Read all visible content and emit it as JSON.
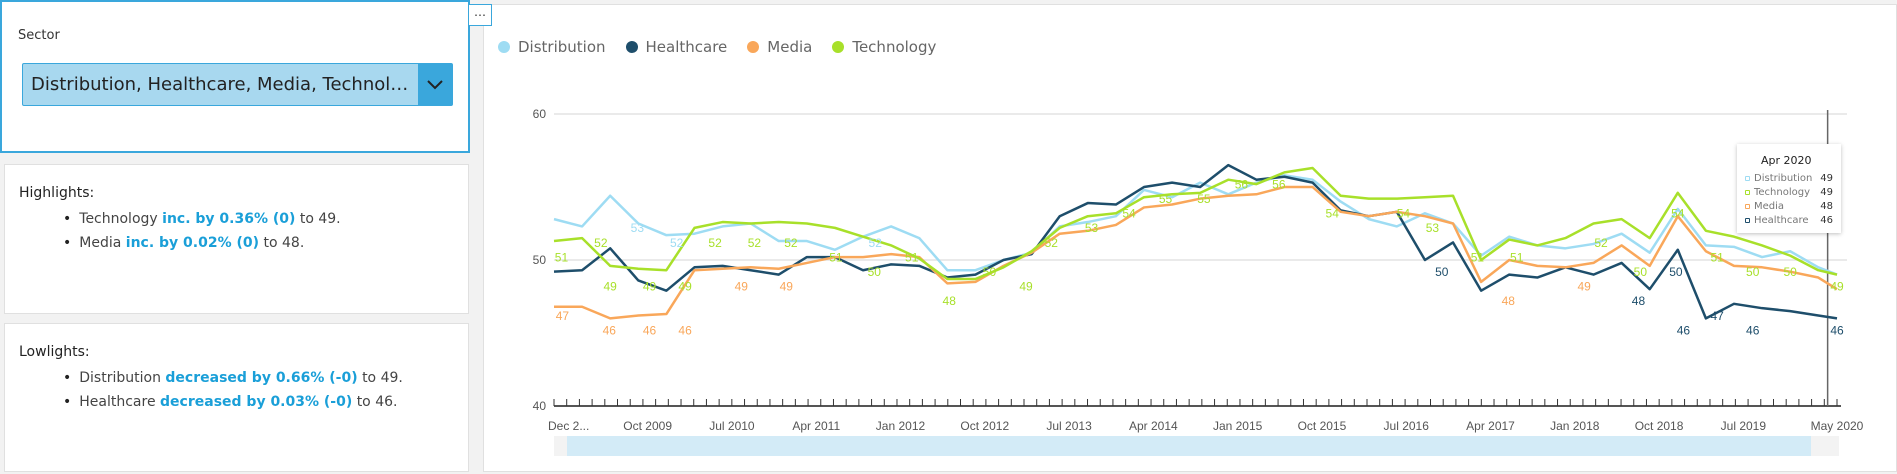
{
  "control": {
    "label": "Sector",
    "selected": "Distribution, Healthcare, Media, Technol…",
    "menu_icon": "…"
  },
  "highlights": {
    "title": "Highlights:",
    "items": [
      {
        "name": "Technology",
        "change": "inc. by 0.36% (0)",
        "tail": "to 49."
      },
      {
        "name": "Media",
        "change": "inc. by 0.02% (0)",
        "tail": "to 48."
      }
    ]
  },
  "lowlights": {
    "title": "Lowlights:",
    "items": [
      {
        "name": "Distribution",
        "change": "decreased by 0.66% (-0)",
        "tail": "to 49."
      },
      {
        "name": "Healthcare",
        "change": "decreased by 0.03% (-0)",
        "tail": "to 46."
      }
    ]
  },
  "tooltip": {
    "title": "Apr 2020",
    "rows": [
      {
        "name": "Distribution",
        "value": "49",
        "color": "#9edcf3"
      },
      {
        "name": "Technology",
        "value": "49",
        "color": "#a8e02a"
      },
      {
        "name": "Media",
        "value": "48",
        "color": "#f9a75a"
      },
      {
        "name": "Healthcare",
        "value": "46",
        "color": "#1e4e6b"
      }
    ]
  },
  "chart_data": {
    "type": "line",
    "x_unit": "months since Dec 2008",
    "x": [
      0,
      3,
      6,
      9,
      12,
      15,
      18,
      21,
      24,
      27,
      30,
      33,
      36,
      39,
      42,
      45,
      48,
      51,
      54,
      57,
      60,
      63,
      66,
      69,
      72,
      75,
      78,
      81,
      84,
      87,
      90,
      93,
      96,
      99,
      102,
      105,
      108,
      111,
      114,
      117,
      120,
      123,
      126,
      129,
      132,
      135,
      137
    ],
    "ylim": [
      40,
      60
    ],
    "yticks": [
      40,
      50,
      60
    ],
    "xticks": [
      {
        "m": 0,
        "label": "Dec 2..."
      },
      {
        "m": 10,
        "label": "Oct 2009"
      },
      {
        "m": 19,
        "label": "Jul 2010"
      },
      {
        "m": 28,
        "label": "Apr 2011"
      },
      {
        "m": 37,
        "label": "Jan 2012"
      },
      {
        "m": 46,
        "label": "Oct 2012"
      },
      {
        "m": 55,
        "label": "Jul 2013"
      },
      {
        "m": 64,
        "label": "Apr 2014"
      },
      {
        "m": 73,
        "label": "Jan 2015"
      },
      {
        "m": 82,
        "label": "Oct 2015"
      },
      {
        "m": 91,
        "label": "Jul 2016"
      },
      {
        "m": 100,
        "label": "Apr 2017"
      },
      {
        "m": 109,
        "label": "Jan 2018"
      },
      {
        "m": 118,
        "label": "Oct 2018"
      },
      {
        "m": 127,
        "label": "Jul 2019"
      },
      {
        "m": 137,
        "label": "May 2020"
      }
    ],
    "legend_position": "top-left",
    "series": [
      {
        "name": "Distribution",
        "color": "#9edcf3",
        "values": [
          52.8,
          52.3,
          54.4,
          52.5,
          51.7,
          51.8,
          52.3,
          52.5,
          51.3,
          51.3,
          50.7,
          51.6,
          52.3,
          51.5,
          49.3,
          49.3,
          50.0,
          50.5,
          52.3,
          52.6,
          53.0,
          54.8,
          54.3,
          55.3,
          54.5,
          55.3,
          55.8,
          55.5,
          54.0,
          52.8,
          52.3,
          53.2,
          52.5,
          50.3,
          51.6,
          51.0,
          50.8,
          51.1,
          51.8,
          50.5,
          53.5,
          51.0,
          50.9,
          50.2,
          50.6,
          49.5,
          49.0
        ]
      },
      {
        "name": "Healthcare",
        "color": "#1e4e6b",
        "values": [
          49.2,
          49.3,
          50.8,
          48.6,
          47.9,
          49.5,
          49.6,
          49.3,
          49.0,
          50.2,
          50.2,
          49.3,
          49.7,
          49.6,
          48.8,
          49.0,
          50.0,
          50.4,
          53.0,
          53.9,
          53.8,
          55.0,
          55.3,
          55.0,
          56.5,
          55.5,
          55.7,
          55.3,
          53.4,
          53.0,
          53.3,
          50.0,
          51.2,
          47.9,
          49.0,
          48.8,
          49.5,
          49.0,
          49.8,
          48.0,
          50.7,
          46.0,
          47.0,
          46.7,
          46.5,
          46.2,
          46.0
        ]
      },
      {
        "name": "Media",
        "color": "#f9a75a",
        "values": [
          46.8,
          46.8,
          46.0,
          46.2,
          46.3,
          49.3,
          49.4,
          49.5,
          49.4,
          49.8,
          50.2,
          50.2,
          50.4,
          50.2,
          48.4,
          48.5,
          49.6,
          50.5,
          51.8,
          52.0,
          52.4,
          53.6,
          53.8,
          54.2,
          54.4,
          54.5,
          55.0,
          55.0,
          53.3,
          53.0,
          53.3,
          53.0,
          52.5,
          48.5,
          50.0,
          49.6,
          49.5,
          49.8,
          51.0,
          49.6,
          53.0,
          50.6,
          49.6,
          49.5,
          49.2,
          48.8,
          48.0
        ]
      },
      {
        "name": "Technology",
        "color": "#a8e02a",
        "values": [
          51.3,
          51.5,
          49.6,
          49.4,
          49.3,
          52.2,
          52.6,
          52.5,
          52.6,
          52.5,
          52.2,
          51.6,
          51.0,
          50.1,
          48.7,
          48.7,
          49.5,
          50.6,
          52.2,
          53.0,
          53.2,
          54.3,
          54.5,
          54.6,
          55.5,
          55.2,
          56.0,
          56.3,
          54.4,
          54.2,
          54.2,
          54.3,
          54.4,
          50.0,
          51.4,
          51.0,
          51.5,
          52.5,
          52.8,
          51.5,
          54.6,
          52.0,
          51.6,
          51.0,
          50.3,
          49.3,
          49.0
        ]
      }
    ],
    "data_labels": [
      {
        "s": 3,
        "m": 0.8,
        "v": "51"
      },
      {
        "s": 3,
        "m": 5,
        "v": "52"
      },
      {
        "s": 3,
        "m": 6,
        "v": "49"
      },
      {
        "s": 3,
        "m": 10.2,
        "v": "49"
      },
      {
        "s": 3,
        "m": 14,
        "v": "49"
      },
      {
        "s": 3,
        "m": 17.2,
        "v": "52"
      },
      {
        "s": 3,
        "m": 21.4,
        "v": "52"
      },
      {
        "s": 3,
        "m": 25.3,
        "v": "52"
      },
      {
        "s": 3,
        "m": 30.1,
        "v": "51"
      },
      {
        "s": 3,
        "m": 34.2,
        "v": "50"
      },
      {
        "s": 3,
        "m": 38.2,
        "v": "51"
      },
      {
        "s": 3,
        "m": 42.2,
        "v": "48"
      },
      {
        "s": 3,
        "m": 46.5,
        "v": "50"
      },
      {
        "s": 3,
        "m": 50.4,
        "v": "49"
      },
      {
        "s": 3,
        "m": 53.1,
        "v": "52"
      },
      {
        "s": 3,
        "m": 57.4,
        "v": "53"
      },
      {
        "s": 3,
        "m": 61.4,
        "v": "54"
      },
      {
        "s": 3,
        "m": 65.3,
        "v": "55"
      },
      {
        "s": 3,
        "m": 69.4,
        "v": "55"
      },
      {
        "s": 3,
        "m": 73.4,
        "v": "56"
      },
      {
        "s": 3,
        "m": 77.4,
        "v": "56"
      },
      {
        "s": 3,
        "m": 83.1,
        "v": "54"
      },
      {
        "s": 3,
        "m": 90.7,
        "v": "54"
      },
      {
        "s": 3,
        "m": 93.8,
        "v": "53"
      },
      {
        "s": 3,
        "m": 98.6,
        "v": "51"
      },
      {
        "s": 3,
        "m": 102.8,
        "v": "51"
      },
      {
        "s": 3,
        "m": 111.8,
        "v": "52"
      },
      {
        "s": 3,
        "m": 116,
        "v": "50"
      },
      {
        "s": 3,
        "m": 120,
        "v": "54"
      },
      {
        "s": 3,
        "m": 124.2,
        "v": "51"
      },
      {
        "s": 3,
        "m": 128,
        "v": "50"
      },
      {
        "s": 3,
        "m": 132,
        "v": "50"
      },
      {
        "s": 3,
        "m": 137,
        "v": "49"
      },
      {
        "s": 0,
        "m": 8.9,
        "v": "53"
      },
      {
        "s": 0,
        "m": 13.1,
        "v": "52"
      },
      {
        "s": 0,
        "m": 34.3,
        "v": "52"
      },
      {
        "s": 2,
        "m": 0.9,
        "v": "47"
      },
      {
        "s": 2,
        "m": 5.9,
        "v": "46"
      },
      {
        "s": 2,
        "m": 10.2,
        "v": "46"
      },
      {
        "s": 2,
        "m": 14,
        "v": "46"
      },
      {
        "s": 2,
        "m": 20,
        "v": "49"
      },
      {
        "s": 2,
        "m": 24.8,
        "v": "49"
      },
      {
        "s": 2,
        "m": 101.9,
        "v": "48"
      },
      {
        "s": 2,
        "m": 110,
        "v": "49"
      },
      {
        "s": 1,
        "m": 94.8,
        "v": "50"
      },
      {
        "s": 1,
        "m": 115.8,
        "v": "48"
      },
      {
        "s": 1,
        "m": 119.8,
        "v": "50"
      },
      {
        "s": 1,
        "m": 120.6,
        "v": "46"
      },
      {
        "s": 1,
        "m": 124.2,
        "v": "47"
      },
      {
        "s": 1,
        "m": 128,
        "v": "46"
      },
      {
        "s": 1,
        "m": 137,
        "v": "46"
      }
    ]
  }
}
